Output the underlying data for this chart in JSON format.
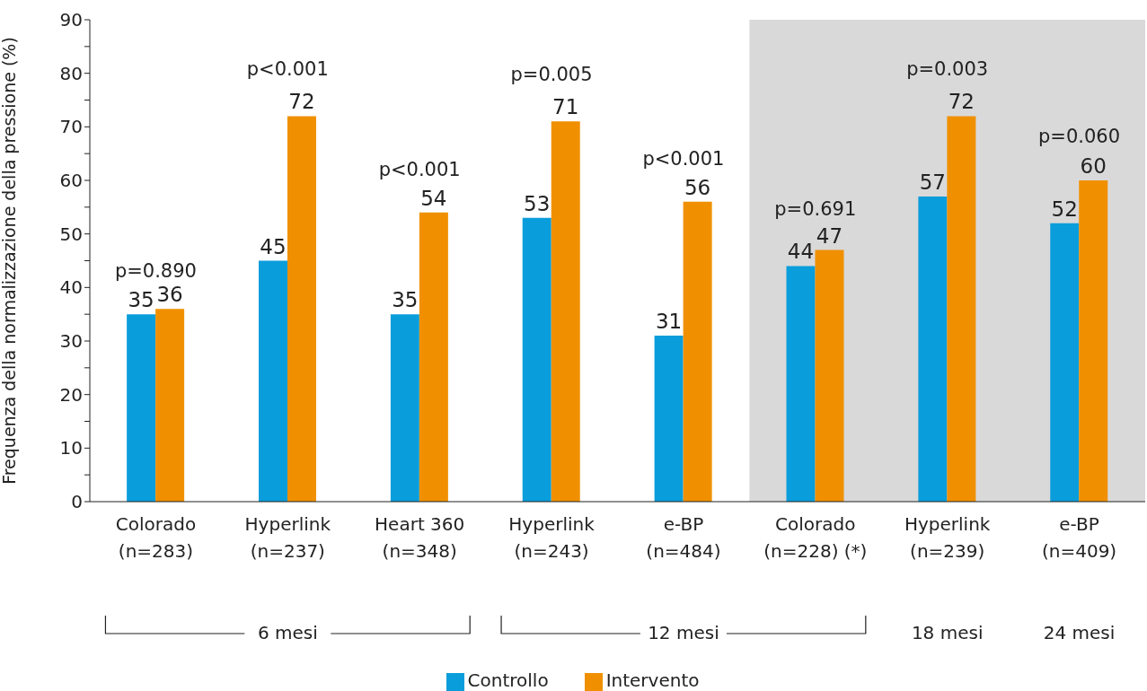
{
  "chart_data": {
    "type": "bar",
    "ylabel": "Frequenza della normalizzazione della pressione (%)",
    "categories": [
      "Colorado\n(n=283)",
      "Hyperlink\n(n=237)",
      "Heart 360\n(n=348)",
      "Hyperlink\n(n=243)",
      "e-BP\n(n=484)",
      "Colorado\n(n=228) (*)",
      "Hyperlink\n(n=239)",
      "e-BP\n(n=409)"
    ],
    "series": [
      {
        "name": "Controllo",
        "color": "#0a9ddb",
        "values": [
          35,
          45,
          35,
          53,
          31,
          44,
          57,
          52
        ]
      },
      {
        "name": "Intervento",
        "color": "#f09000",
        "values": [
          36,
          72,
          54,
          71,
          56,
          47,
          72,
          60
        ]
      }
    ],
    "ylim": [
      0,
      90
    ],
    "yticks": [
      0,
      {
        "value": 5,
        "label": null
      },
      10,
      {
        "value": 15,
        "label": null
      },
      20,
      {
        "value": 25,
        "label": null
      },
      30,
      {
        "value": 35,
        "label": null
      },
      40,
      {
        "value": 45,
        "label": null
      },
      50,
      {
        "value": 55,
        "label": null
      },
      60,
      {
        "value": 65,
        "label": null
      },
      70,
      {
        "value": 75,
        "label": null
      },
      80,
      {
        "value": 85,
        "label": null
      },
      90
    ],
    "data_labels": true,
    "bands": [
      {
        "axis": "x",
        "from": "Colorado\n(n=228) (*)",
        "to": "e-BP\n(n=409)",
        "color": "#d9d9d9"
      }
    ],
    "annotations": [
      "p=0.890",
      "p<0.001",
      "p<0.001",
      "p=0.005",
      "p<0.001",
      "p=0.691",
      "p=0.003",
      "p=0.060",
      "6 mesi",
      "12 mesi",
      "18 mesi",
      "24 mesi"
    ],
    "grid": false,
    "legend": "bottom"
  }
}
